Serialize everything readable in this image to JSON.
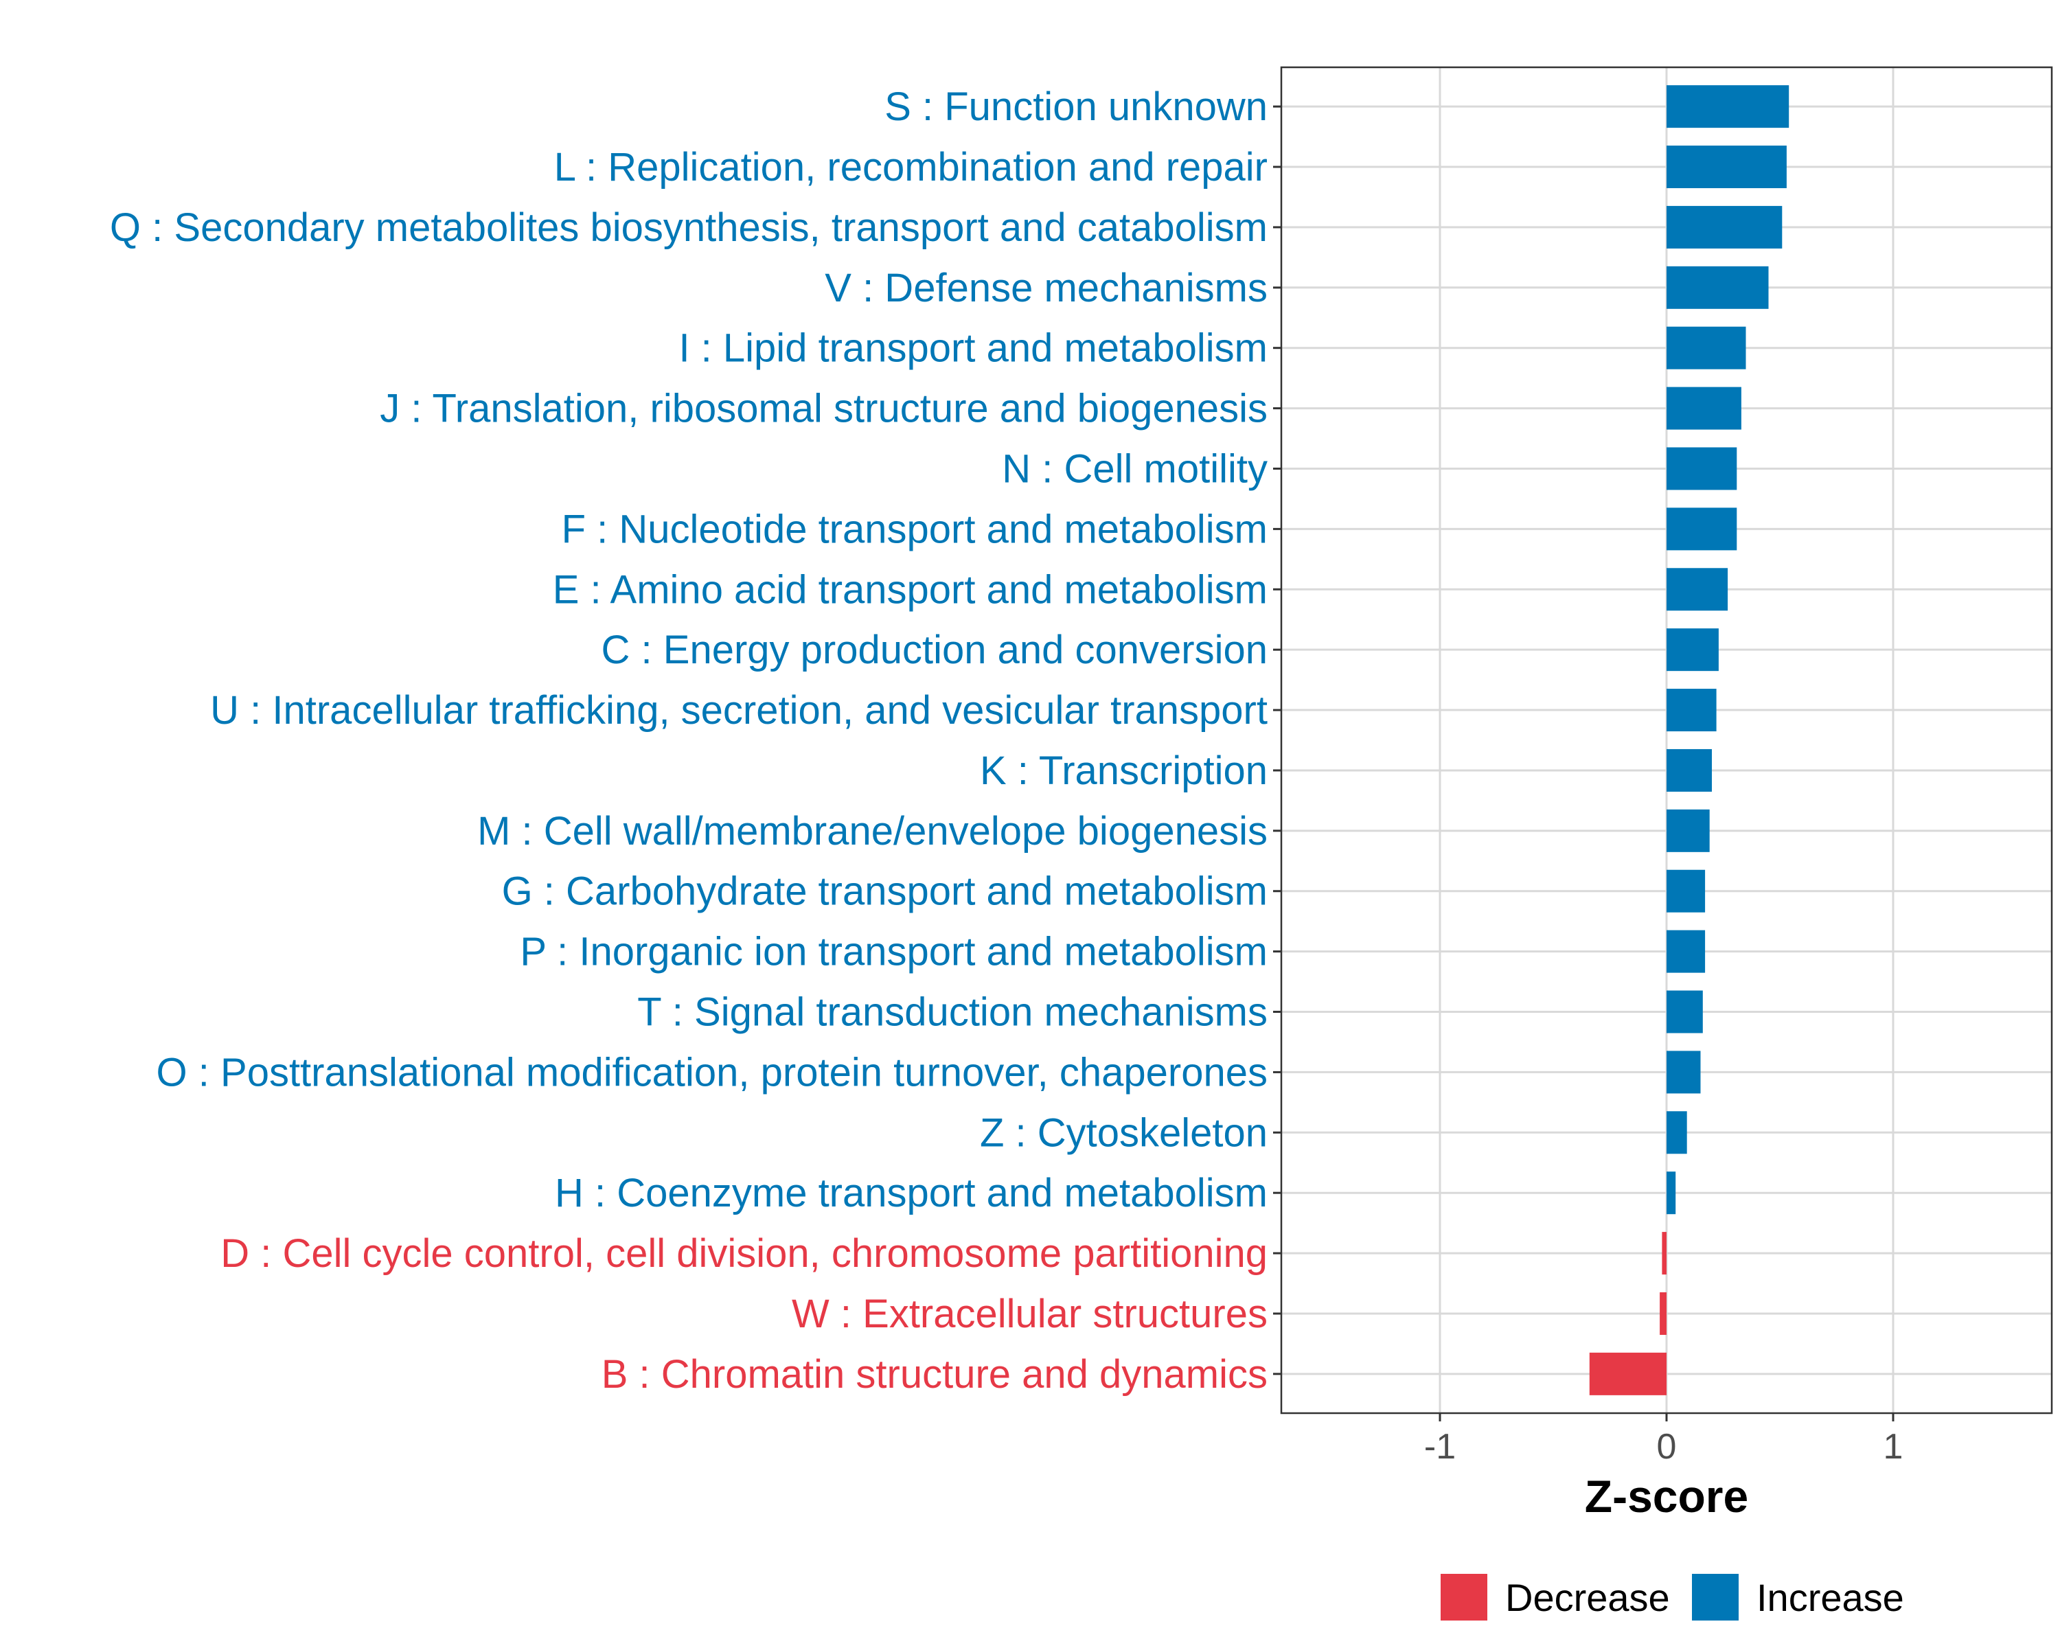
{
  "chart_data": {
    "type": "bar",
    "orientation": "horizontal",
    "title": "",
    "xlabel": "Z-score",
    "ylabel": "",
    "xlim": [
      -1.7,
      1.7
    ],
    "xticks": [
      -1,
      0,
      1
    ],
    "xtick_labels": [
      "-1",
      "0",
      "1"
    ],
    "grid": true,
    "legend_position": "bottom",
    "categories": [
      "S : Function unknown",
      "L : Replication, recombination and repair",
      "Q : Secondary metabolites biosynthesis, transport and catabolism",
      "V : Defense mechanisms",
      "I : Lipid transport and metabolism",
      "J : Translation, ribosomal structure and biogenesis",
      "N : Cell motility",
      "F : Nucleotide transport and metabolism",
      "E : Amino acid transport and metabolism",
      "C : Energy production and conversion",
      "U : Intracellular trafficking, secretion, and vesicular transport",
      "K : Transcription",
      "M : Cell wall/membrane/envelope biogenesis",
      "G : Carbohydrate transport and metabolism",
      "P : Inorganic ion transport and metabolism",
      "T : Signal transduction mechanisms",
      "O : Posttranslational modification, protein turnover, chaperones",
      "Z : Cytoskeleton",
      "H : Coenzyme transport and metabolism",
      "D : Cell cycle control, cell division, chromosome partitioning",
      "W : Extracellular structures",
      "B : Chromatin structure and dynamics"
    ],
    "values": [
      0.54,
      0.53,
      0.51,
      0.45,
      0.35,
      0.33,
      0.31,
      0.31,
      0.27,
      0.23,
      0.22,
      0.2,
      0.19,
      0.17,
      0.17,
      0.16,
      0.15,
      0.09,
      0.04,
      -0.02,
      -0.03,
      -0.34
    ],
    "groups": [
      "Increase",
      "Increase",
      "Increase",
      "Increase",
      "Increase",
      "Increase",
      "Increase",
      "Increase",
      "Increase",
      "Increase",
      "Increase",
      "Increase",
      "Increase",
      "Increase",
      "Increase",
      "Increase",
      "Increase",
      "Increase",
      "Increase",
      "Decrease",
      "Decrease",
      "Decrease"
    ],
    "legend": [
      {
        "name": "Decrease",
        "color": "#E63946"
      },
      {
        "name": "Increase",
        "color": "#0077B6"
      }
    ]
  },
  "colors": {
    "increase": "#0077B6",
    "decrease": "#E63946",
    "grid": "#D9D9D9",
    "panel_border": "#333333",
    "tick_text": "#4d4d4d"
  }
}
